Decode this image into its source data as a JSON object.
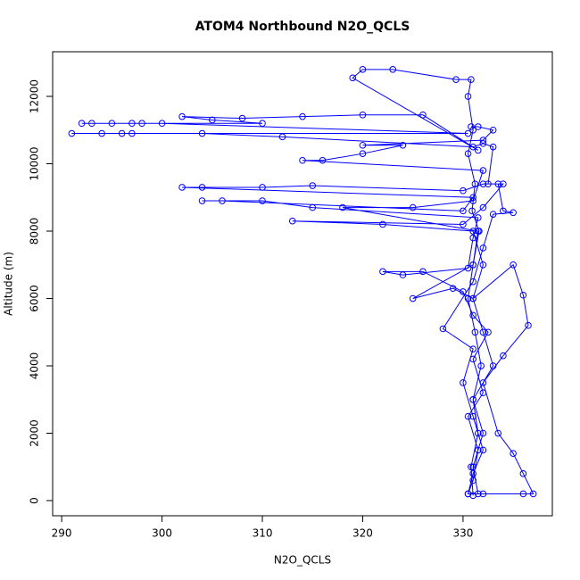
{
  "chart_data": {
    "type": "line",
    "title": "ATOM4 Northbound N2O_QCLS",
    "xlabel": "N2O_QCLS",
    "ylabel": "Altitude (m)",
    "color": "#0000ff",
    "markers": "open-circle",
    "xlim": [
      289.1,
      338.9
    ],
    "ylim": [
      -450,
      13325
    ],
    "xticks": [
      290,
      300,
      310,
      320,
      330
    ],
    "yticks": [
      0,
      2000,
      4000,
      6000,
      8000,
      10000,
      12000
    ],
    "x": [
      331,
      330.8,
      331.5,
      331,
      331.8,
      331.2,
      330.5,
      331,
      331.6,
      330.9,
      331.2,
      330.5,
      331,
      330.5,
      330.8,
      329.3,
      323,
      320,
      319,
      331.5,
      326,
      320,
      314,
      308,
      302,
      305,
      310,
      298,
      295,
      292,
      293,
      297,
      300,
      330.5,
      297,
      294,
      291,
      296,
      304,
      312,
      331,
      332,
      333,
      332.5,
      334,
      332,
      330,
      313,
      322,
      331,
      332,
      331,
      335,
      336,
      336.5,
      334,
      332,
      333.5,
      335,
      336,
      337,
      336,
      332,
      330.5,
      331,
      331.5,
      330.5,
      332,
      331,
      332.5,
      331,
      330,
      326,
      322,
      324,
      330.5,
      331,
      331.5,
      315,
      310,
      304,
      306,
      330,
      331,
      302,
      304,
      310,
      315,
      330,
      332,
      333.5,
      334,
      335,
      333,
      332,
      331,
      328,
      331,
      330,
      331,
      332,
      331,
      330.5,
      331.5,
      331,
      332,
      331,
      333,
      332,
      331,
      329,
      325,
      331,
      331.5,
      318,
      325,
      331,
      332,
      314,
      316,
      320,
      324,
      320,
      332,
      333,
      331.5,
      330.8
    ],
    "y": [
      150,
      1000,
      2000,
      3000,
      4000,
      5000,
      6000,
      7000,
      8000,
      8600,
      9400,
      10300,
      11000,
      12000,
      12500,
      12500,
      12800,
      12800,
      12550,
      10400,
      11450,
      11450,
      11400,
      11350,
      11400,
      11300,
      11200,
      11200,
      11200,
      11200,
      11200,
      11200,
      11200,
      10900,
      10900,
      10900,
      10900,
      10900,
      10900,
      10800,
      10500,
      10600,
      10500,
      9400,
      9400,
      8700,
      8200,
      8300,
      8200,
      8000,
      7000,
      6000,
      7000,
      6100,
      5200,
      4300,
      3500,
      2000,
      1400,
      800,
      200,
      200,
      200,
      200,
      600,
      1500,
      2500,
      3200,
      4200,
      5000,
      5500,
      6200,
      6800,
      6800,
      6700,
      6900,
      7800,
      8400,
      8700,
      8900,
      8900,
      8900,
      8600,
      9000,
      9300,
      9300,
      9300,
      9350,
      9200,
      9400,
      9400,
      8600,
      8550,
      8500,
      7500,
      6500,
      5100,
      4500,
      3500,
      2500,
      1500,
      800,
      200,
      200,
      1000,
      2000,
      3000,
      4000,
      5000,
      6000,
      6300,
      6000,
      7000,
      8000,
      8700,
      8700,
      8900,
      9800,
      10100,
      10100,
      10300,
      10550,
      10550,
      10700,
      11000,
      11100,
      11100
    ]
  }
}
